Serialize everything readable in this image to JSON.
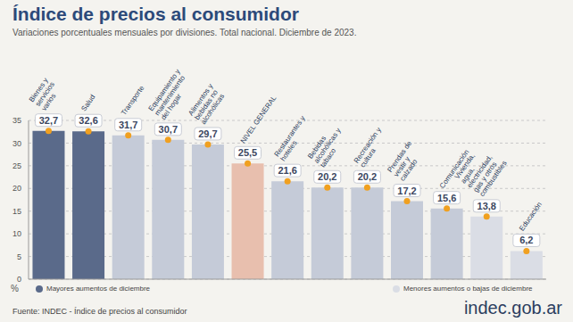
{
  "chart_data": {
    "type": "bar",
    "title": "Índice de precios al consumidor",
    "subtitle": "Variaciones porcentuales mensuales por divisiones. Total nacional. Diciembre de 2023.",
    "categories": [
      "Bienes y servicios varios",
      "Salud",
      "Transporte",
      "Equipamiento y mantenimiento del hogar",
      "Alimentos y bebidas no alcohólicas",
      "NIVEL GENERAL",
      "Restaurantes y hoteles",
      "Bebidas alcohólicas y tabaco",
      "Recreación y cultura",
      "Prendas de vestir y calzado",
      "Comunicación",
      "Vivienda, agua, electricidad, gas y otros combustibles",
      "Educación"
    ],
    "values": [
      32.7,
      32.6,
      31.7,
      30.7,
      29.7,
      25.5,
      21.6,
      20.2,
      20.2,
      17.2,
      15.6,
      13.8,
      6.2
    ],
    "value_labels": [
      "32,7",
      "32,6",
      "31,7",
      "30,7",
      "29,7",
      "25,5",
      "21,6",
      "20,2",
      "20,2",
      "17,2",
      "15,6",
      "13,8",
      "6,2"
    ],
    "colors": [
      "#5a6a8a",
      "#5a6a8a",
      "#c5cbd8",
      "#c5cbd8",
      "#c5cbd8",
      "#e8bfae",
      "#c5cbd8",
      "#c5cbd8",
      "#c5cbd8",
      "#c5cbd8",
      "#c5cbd8",
      "#dadde5",
      "#dadde5"
    ],
    "ylim": [
      0,
      35
    ],
    "yticks": [
      0,
      5,
      10,
      15,
      20,
      25,
      30,
      35
    ],
    "y_label": "%",
    "grid": true,
    "data_labels": true,
    "legend_labels": [
      {
        "label": "Mayores aumentos de diciembre",
        "color": "#5a6a8a"
      },
      {
        "label": "Menores aumentos o bajas de diciembre",
        "color": "#dadde5"
      }
    ],
    "source": "Fuente: INDEC - Índice de precios al consumidor",
    "brand": "indec.gob.ar"
  }
}
